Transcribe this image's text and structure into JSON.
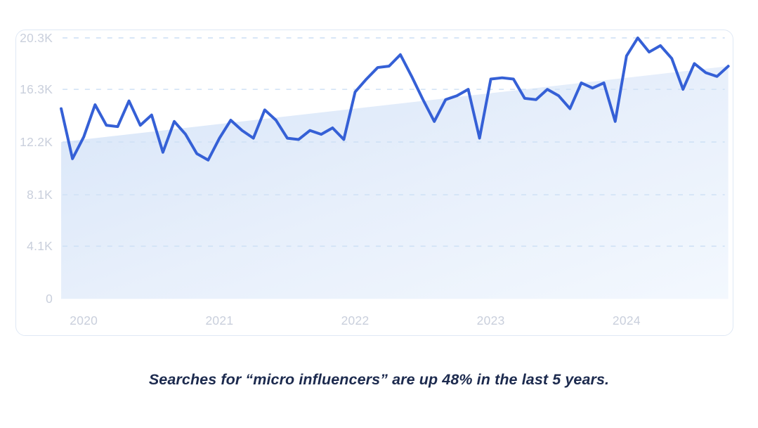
{
  "caption": "Searches for “micro influencers” are up 48% in the last 5 years.",
  "chart_data": {
    "type": "line",
    "title": "",
    "xlabel": "",
    "ylabel": "",
    "ylim": [
      0,
      20.3
    ],
    "unit": "K searches per month",
    "grid": "horizontal-dashed",
    "legend": "none",
    "x_months": [
      "Nov 2019",
      "Dec 2019",
      "Jan 2020",
      "Feb 2020",
      "Mar 2020",
      "Apr 2020",
      "May 2020",
      "Jun 2020",
      "Jul 2020",
      "Aug 2020",
      "Sep 2020",
      "Oct 2020",
      "Nov 2020",
      "Dec 2020",
      "Jan 2021",
      "Feb 2021",
      "Mar 2021",
      "Apr 2021",
      "May 2021",
      "Jun 2021",
      "Jul 2021",
      "Aug 2021",
      "Sep 2021",
      "Oct 2021",
      "Nov 2021",
      "Dec 2021",
      "Jan 2022",
      "Feb 2022",
      "Mar 2022",
      "Apr 2022",
      "May 2022",
      "Jun 2022",
      "Jul 2022",
      "Aug 2022",
      "Sep 2022",
      "Oct 2022",
      "Nov 2022",
      "Dec 2022",
      "Jan 2023",
      "Feb 2023",
      "Mar 2023",
      "Apr 2023",
      "May 2023",
      "Jun 2023",
      "Jul 2023",
      "Aug 2023",
      "Sep 2023",
      "Oct 2023",
      "Nov 2023",
      "Dec 2023",
      "Jan 2024",
      "Feb 2024",
      "Mar 2024",
      "Apr 2024",
      "May 2024",
      "Jun 2024",
      "Jul 2024",
      "Aug 2024",
      "Sep 2024",
      "Oct 2024"
    ],
    "values": [
      14.8,
      10.9,
      12.6,
      15.1,
      13.5,
      13.4,
      15.4,
      13.5,
      14.3,
      11.4,
      13.8,
      12.8,
      11.3,
      10.8,
      12.5,
      13.9,
      13.1,
      12.5,
      14.7,
      13.9,
      12.5,
      12.4,
      13.1,
      12.8,
      13.3,
      12.4,
      16.1,
      17.1,
      18.0,
      18.1,
      19.0,
      17.3,
      15.5,
      13.8,
      15.5,
      15.8,
      16.3,
      12.5,
      17.1,
      17.2,
      17.1,
      15.6,
      15.5,
      16.3,
      15.8,
      14.8,
      16.8,
      16.4,
      16.8,
      13.8,
      18.9,
      20.3,
      19.2,
      19.7,
      18.7,
      16.3,
      18.3,
      17.6,
      17.3,
      18.1
    ],
    "y_ticks": [
      {
        "value": 0,
        "label": "0"
      },
      {
        "value": 4.1,
        "label": "4.1K"
      },
      {
        "value": 8.1,
        "label": "8.1K"
      },
      {
        "value": 12.2,
        "label": "12.2K"
      },
      {
        "value": 16.3,
        "label": "16.3K"
      },
      {
        "value": 20.3,
        "label": "20.3K"
      }
    ],
    "x_ticks": [
      {
        "month_index": 2,
        "label": "2020"
      },
      {
        "month_index": 14,
        "label": "2021"
      },
      {
        "month_index": 26,
        "label": "2022"
      },
      {
        "month_index": 38,
        "label": "2023"
      },
      {
        "month_index": 50,
        "label": "2024"
      }
    ],
    "trend_area": {
      "start_value": 12.2,
      "end_value": 18.1,
      "growth_pct": 48
    },
    "colors": {
      "line": "#3560d6",
      "grid": "#cfe1f5",
      "tick_label": "#c9cfdc",
      "card_border": "#dfe8f5",
      "caption_text": "#1c2a4e",
      "area_gradient": [
        "#d7e5f8",
        "#e7effb",
        "#f3f8fe"
      ]
    }
  }
}
